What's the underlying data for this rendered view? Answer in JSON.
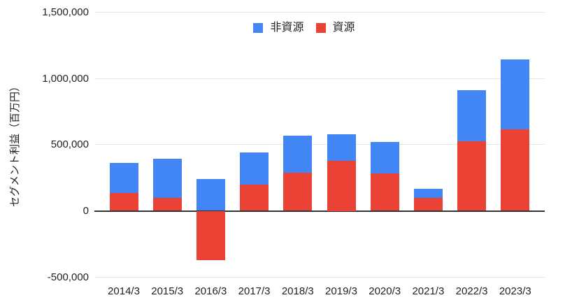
{
  "chart_data": {
    "type": "bar",
    "stacked": true,
    "title": "",
    "xlabel": "",
    "ylabel": "セグメント利益（百万円）",
    "unit": "百万円",
    "categories": [
      "2014/3",
      "2015/3",
      "2016/3",
      "2017/3",
      "2018/3",
      "2019/3",
      "2020/3",
      "2021/3",
      "2022/3",
      "2023/3"
    ],
    "series": [
      {
        "name": "非資源",
        "color": "#4285F4",
        "values": [
          225000,
          300000,
          240000,
          240000,
          280000,
          205000,
          240000,
          65000,
          385000,
          525000
        ]
      },
      {
        "name": "資源",
        "color": "#EA4335",
        "values": [
          135000,
          95000,
          -370000,
          200000,
          285000,
          375000,
          280000,
          100000,
          525000,
          615000
        ]
      }
    ],
    "stack_bottom_to_top": [
      "資源",
      "非資源"
    ],
    "ylim": [
      -500000,
      1500000
    ],
    "y_ticks": [
      {
        "value": 1500000,
        "label": "1,500,000"
      },
      {
        "value": 1000000,
        "label": "1,000,000"
      },
      {
        "value": 500000,
        "label": "500,000"
      },
      {
        "value": 0,
        "label": "0"
      },
      {
        "value": -500000,
        "label": "-500,000"
      }
    ],
    "grid": true,
    "legend_position": "top",
    "background_color": "#ffffff",
    "gridline_color": "#e6e6e6",
    "baseline_color": "#333333",
    "text_color": "#222222"
  }
}
